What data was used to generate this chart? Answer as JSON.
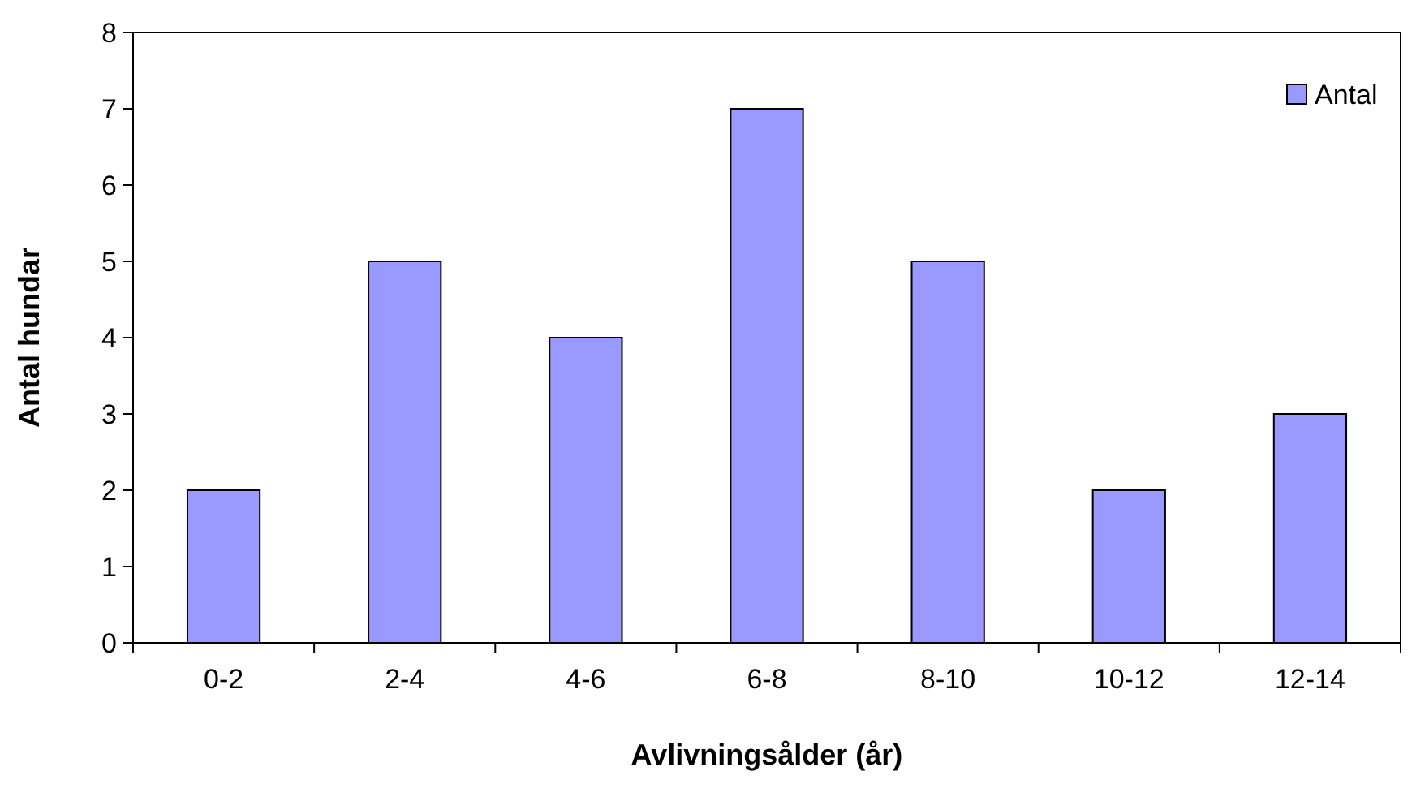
{
  "chart_data": {
    "type": "bar",
    "xlabel": "Avlivningsålder (år)",
    "ylabel": "Antal hundar",
    "categories": [
      "0-2",
      "2-4",
      "4-6",
      "6-8",
      "8-10",
      "10-12",
      "12-14"
    ],
    "series": [
      {
        "name": "Antal",
        "color": "#9999ff",
        "values": [
          2,
          5,
          4,
          7,
          5,
          2,
          3
        ]
      }
    ],
    "ylim": [
      0,
      8
    ],
    "yticks": [
      0,
      1,
      2,
      3,
      4,
      5,
      6,
      7,
      8
    ],
    "grid": false,
    "legend": "top right"
  }
}
